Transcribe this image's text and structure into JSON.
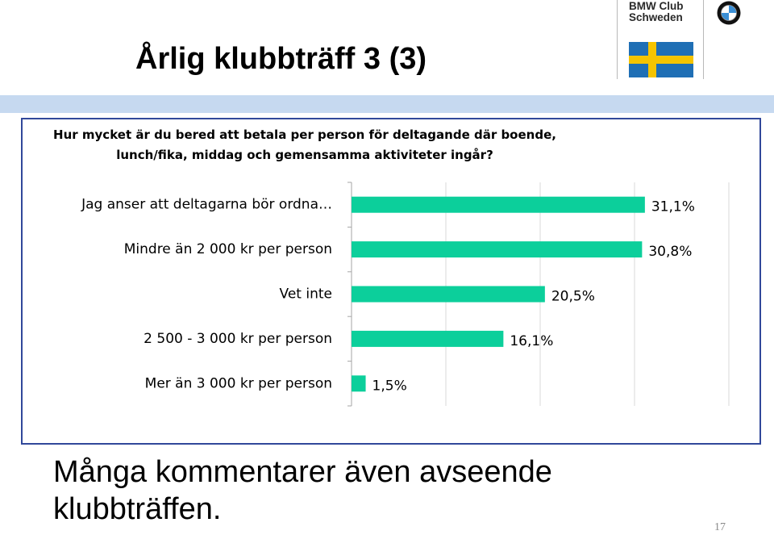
{
  "slide": {
    "title": "Årlig klubbträff 3 (3)",
    "comment_lines": [
      "Många kommentarer även avseende",
      "klubbträffen."
    ],
    "page_number": "17"
  },
  "logo": {
    "line1": "BMW Club",
    "line2": "Schweden",
    "emblem": "bmw-roundel-icon",
    "flag": "swedish-flag-icon"
  },
  "colors": {
    "bar": "#0ccf9b",
    "frame": "#31489a",
    "header_band": "#c6d9f0",
    "flag_blue": "#1f6fb5",
    "flag_yellow": "#f5c400"
  },
  "chart_data": {
    "type": "bar",
    "orientation": "horizontal",
    "title_lines": [
      "Hur mycket är du bered att betala per person för deltagande där boende,",
      "lunch/fika, middag och gemensamma aktiviteter ingår?"
    ],
    "categories": [
      "Jag anser att deltagarna bör ordna…",
      "Mindre än 2 000 kr per person",
      "Vet inte",
      "2 500 - 3 000 kr per person",
      "Mer än 3 000 kr per person"
    ],
    "values": [
      31.1,
      30.8,
      20.5,
      16.1,
      1.5
    ],
    "value_labels": [
      "31,1%",
      "30,8%",
      "20,5%",
      "16,1%",
      "1,5%"
    ],
    "xlim": [
      0,
      40
    ],
    "grid": true,
    "legend": "none"
  }
}
